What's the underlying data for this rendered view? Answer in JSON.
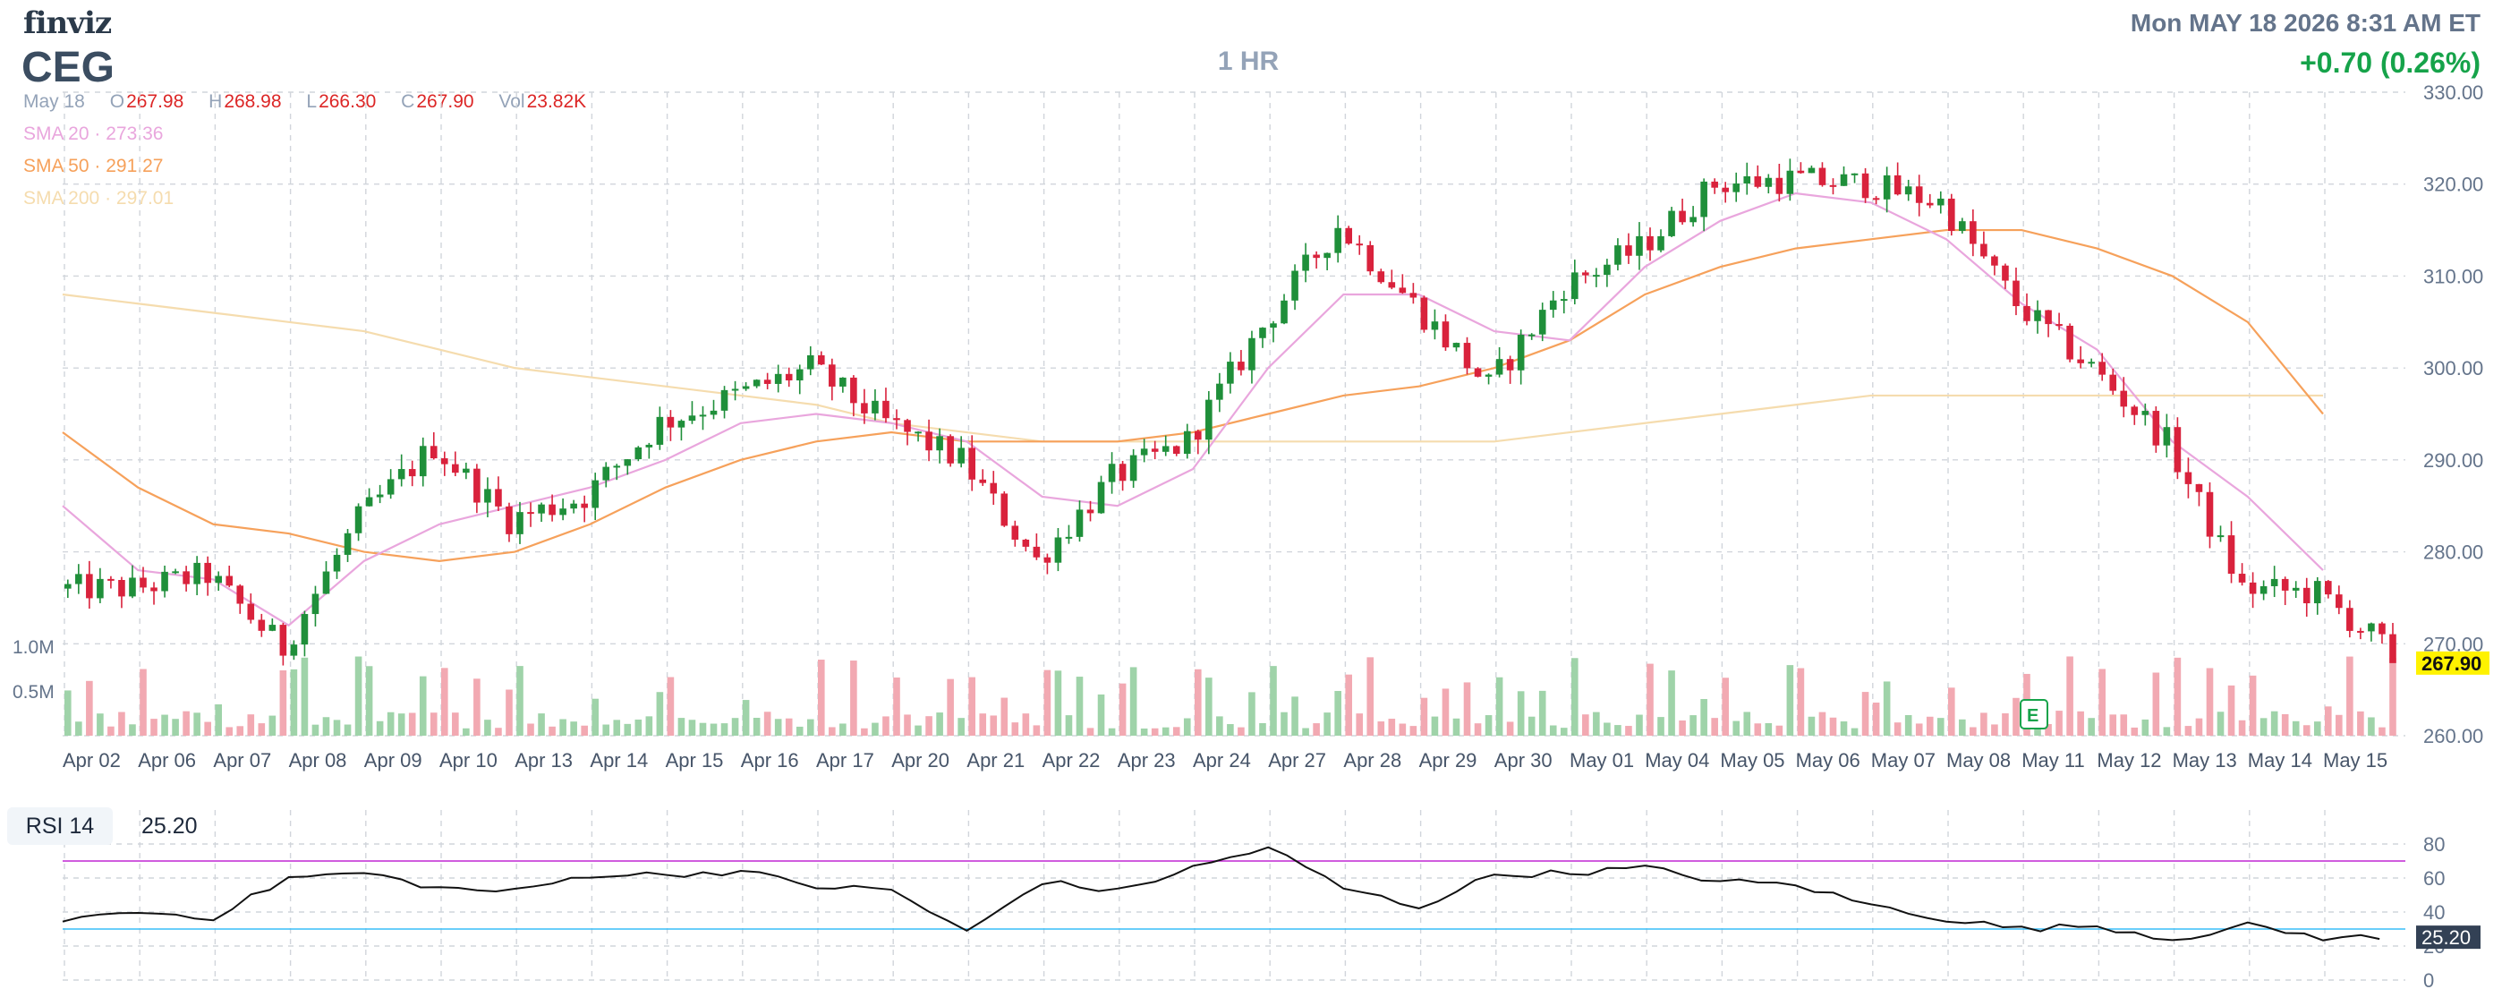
{
  "header": {
    "logo": "finviz",
    "ticker": "CEG",
    "timeframe": "1 HR",
    "datetime": "Mon MAY 18 2026 8:31 AM ET",
    "change": "+0.70 (0.26%)"
  },
  "ohlc": {
    "date": "May 18",
    "o_label": "O",
    "o": "267.98",
    "h_label": "H",
    "h": "268.98",
    "l_label": "L",
    "l": "266.30",
    "c_label": "C",
    "c": "267.90",
    "vol_label": "Vol",
    "vol": "23.82K"
  },
  "sma": [
    {
      "label": "SMA 20",
      "value": "273.36",
      "color": "#e9a6dd"
    },
    {
      "label": "SMA 50",
      "value": "291.27",
      "color": "#f6a15b"
    },
    {
      "label": "SMA 200",
      "value": "297.01",
      "color": "#f5dcae"
    }
  ],
  "colors": {
    "up": "#1f8f3a",
    "down": "#d9223c",
    "vol_up": "#9fd3a9",
    "vol_down": "#f2a9b2",
    "rsi_line": "#111111",
    "rsi_upper": "#c026d3",
    "rsi_lower": "#38bdf8",
    "price_tag": "#fff200"
  },
  "chart_data": [
    {
      "type": "candlestick",
      "title": "CEG",
      "ylim": [
        260,
        330
      ],
      "y_ticks": [
        "330.00",
        "320.00",
        "310.00",
        "300.00",
        "290.00",
        "280.00",
        "270.00",
        "260.00"
      ],
      "x_labels": [
        "Apr 02",
        "Apr 06",
        "Apr 07",
        "Apr 08",
        "Apr 09",
        "Apr 10",
        "Apr 13",
        "Apr 14",
        "Apr 15",
        "Apr 16",
        "Apr 17",
        "Apr 20",
        "Apr 21",
        "Apr 22",
        "Apr 23",
        "Apr 24",
        "Apr 27",
        "Apr 28",
        "Apr 29",
        "Apr 30",
        "May 01",
        "May 04",
        "May 05",
        "May 06",
        "May 07",
        "May 08",
        "May 11",
        "May 12",
        "May 13",
        "May 14",
        "May 15"
      ],
      "last_price": "267.90",
      "close_by_day": [
        276.0,
        277.5,
        269.5,
        283.5,
        291.5,
        283.5,
        286.0,
        294.0,
        297.0,
        300.0,
        294.0,
        290.0,
        279.0,
        288.0,
        292.0,
        304.5,
        315.5,
        307.0,
        298.0,
        309.0,
        313.0,
        320.0,
        320.5,
        320.0,
        318.0,
        307.0,
        300.0,
        292.0,
        276.0,
        275.5,
        269.0
      ],
      "sma20_by_day": [
        285,
        278,
        277,
        272,
        279,
        283,
        285,
        287,
        290,
        294,
        295,
        294,
        292,
        286,
        285,
        289,
        300,
        308,
        308,
        304,
        303,
        311,
        316,
        319,
        318,
        314,
        307,
        302,
        292,
        286,
        278
      ],
      "sma50_by_day": [
        293,
        287,
        283,
        282,
        280,
        279,
        280,
        283,
        287,
        290,
        292,
        293,
        292,
        292,
        292,
        293,
        295,
        297,
        298,
        300,
        303,
        308,
        311,
        313,
        314,
        315,
        315,
        313,
        310,
        305,
        295
      ],
      "sma200_by_day": [
        308,
        307,
        306,
        305,
        304,
        302,
        300,
        299,
        298,
        297,
        296,
        294,
        293,
        292,
        292,
        292,
        292,
        292,
        292,
        292,
        293,
        294,
        295,
        296,
        297,
        297,
        297,
        297,
        297,
        297,
        297
      ]
    },
    {
      "type": "bar",
      "title": "Volume",
      "y_ticks": [
        "1.0M",
        "0.5M"
      ]
    },
    {
      "type": "line",
      "title": "RSI 14",
      "label": "RSI 14",
      "value": "25.20",
      "ylim": [
        0,
        100
      ],
      "y_ticks": [
        "80",
        "60",
        "40",
        "20",
        "0"
      ],
      "upper": 70,
      "lower": 30,
      "rsi_by_day": [
        36,
        40,
        37,
        60,
        63,
        54,
        52,
        62,
        62,
        64,
        55,
        53,
        28,
        58,
        52,
        66,
        78,
        54,
        43,
        62,
        63,
        66,
        58,
        56,
        44,
        36,
        30,
        32,
        24,
        32,
        25
      ]
    }
  ]
}
